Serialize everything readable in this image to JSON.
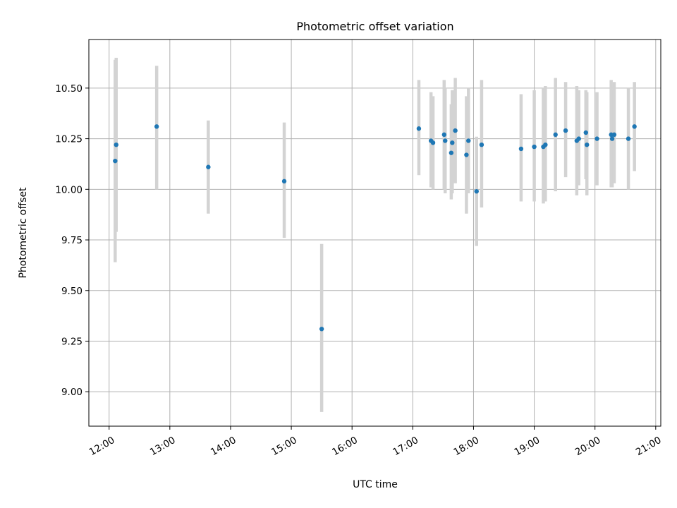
{
  "chart_data": {
    "type": "scatter",
    "title": "Photometric offset variation",
    "xlabel": "UTC time",
    "ylabel": "Photometric offset",
    "xlim": [
      "11:40",
      "21:05"
    ],
    "ylim": [
      8.83,
      10.74
    ],
    "grid": true,
    "x_ticks": [
      "12:00",
      "13:00",
      "14:00",
      "15:00",
      "16:00",
      "17:00",
      "18:00",
      "19:00",
      "20:00",
      "21:00"
    ],
    "y_ticks": [
      9.0,
      9.25,
      9.5,
      9.75,
      10.0,
      10.25,
      10.5
    ],
    "y_tick_labels": [
      "9.00",
      "9.25",
      "9.50",
      "9.75",
      "10.00",
      "10.25",
      "10.50"
    ],
    "colors": {
      "point": "#1f77b4",
      "errorbar": "#d3d3d3",
      "grid": "#b0b0b0"
    },
    "points": [
      {
        "x": "12:06",
        "y": 10.14,
        "lo": 9.64,
        "hi": 10.64
      },
      {
        "x": "12:07",
        "y": 10.22,
        "lo": 9.79,
        "hi": 10.65
      },
      {
        "x": "12:47",
        "y": 10.31,
        "lo": 10.0,
        "hi": 10.61
      },
      {
        "x": "13:38",
        "y": 10.11,
        "lo": 9.88,
        "hi": 10.34
      },
      {
        "x": "14:53",
        "y": 10.04,
        "lo": 9.76,
        "hi": 10.33
      },
      {
        "x": "15:30",
        "y": 9.31,
        "lo": 8.9,
        "hi": 9.73
      },
      {
        "x": "17:06",
        "y": 10.3,
        "lo": 10.07,
        "hi": 10.54
      },
      {
        "x": "17:18",
        "y": 10.24,
        "lo": 10.01,
        "hi": 10.48
      },
      {
        "x": "17:20",
        "y": 10.23,
        "lo": 10.0,
        "hi": 10.46
      },
      {
        "x": "17:31",
        "y": 10.27,
        "lo": 10.0,
        "hi": 10.54
      },
      {
        "x": "17:32",
        "y": 10.24,
        "lo": 9.98,
        "hi": 10.5
      },
      {
        "x": "17:38",
        "y": 10.18,
        "lo": 9.95,
        "hi": 10.42
      },
      {
        "x": "17:39",
        "y": 10.23,
        "lo": 9.98,
        "hi": 10.49
      },
      {
        "x": "17:42",
        "y": 10.29,
        "lo": 10.03,
        "hi": 10.55
      },
      {
        "x": "17:53",
        "y": 10.17,
        "lo": 9.88,
        "hi": 10.46
      },
      {
        "x": "17:55",
        "y": 10.24,
        "lo": 9.98,
        "hi": 10.5
      },
      {
        "x": "18:03",
        "y": 9.99,
        "lo": 9.72,
        "hi": 10.26
      },
      {
        "x": "18:08",
        "y": 10.22,
        "lo": 9.91,
        "hi": 10.54
      },
      {
        "x": "18:47",
        "y": 10.2,
        "lo": 9.94,
        "hi": 10.47
      },
      {
        "x": "19:00",
        "y": 10.21,
        "lo": 9.94,
        "hi": 10.49
      },
      {
        "x": "19:09",
        "y": 10.21,
        "lo": 9.93,
        "hi": 10.5
      },
      {
        "x": "19:11",
        "y": 10.22,
        "lo": 9.94,
        "hi": 10.51
      },
      {
        "x": "19:21",
        "y": 10.27,
        "lo": 9.99,
        "hi": 10.55
      },
      {
        "x": "19:31",
        "y": 10.29,
        "lo": 10.06,
        "hi": 10.53
      },
      {
        "x": "19:42",
        "y": 10.24,
        "lo": 9.97,
        "hi": 10.51
      },
      {
        "x": "19:44",
        "y": 10.25,
        "lo": 10.02,
        "hi": 10.49
      },
      {
        "x": "19:51",
        "y": 10.28,
        "lo": 10.05,
        "hi": 10.49
      },
      {
        "x": "19:52",
        "y": 10.22,
        "lo": 9.97,
        "hi": 10.48
      },
      {
        "x": "20:02",
        "y": 10.25,
        "lo": 10.02,
        "hi": 10.48
      },
      {
        "x": "20:16",
        "y": 10.27,
        "lo": 10.01,
        "hi": 10.54
      },
      {
        "x": "20:17",
        "y": 10.25,
        "lo": 10.01,
        "hi": 10.49
      },
      {
        "x": "20:19",
        "y": 10.27,
        "lo": 10.03,
        "hi": 10.53
      },
      {
        "x": "20:33",
        "y": 10.25,
        "lo": 10.0,
        "hi": 10.5
      },
      {
        "x": "20:39",
        "y": 10.31,
        "lo": 10.09,
        "hi": 10.53
      }
    ]
  }
}
